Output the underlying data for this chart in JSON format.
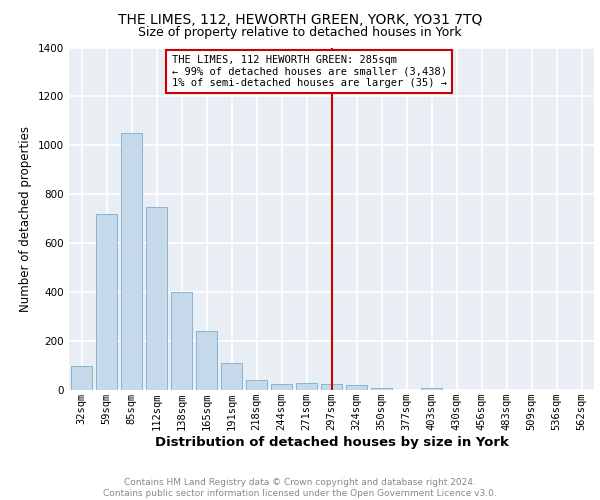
{
  "title": "THE LIMES, 112, HEWORTH GREEN, YORK, YO31 7TQ",
  "subtitle": "Size of property relative to detached houses in York",
  "xlabel": "Distribution of detached houses by size in York",
  "ylabel": "Number of detached properties",
  "categories": [
    "32sqm",
    "59sqm",
    "85sqm",
    "112sqm",
    "138sqm",
    "165sqm",
    "191sqm",
    "218sqm",
    "244sqm",
    "271sqm",
    "297sqm",
    "324sqm",
    "350sqm",
    "377sqm",
    "403sqm",
    "430sqm",
    "456sqm",
    "483sqm",
    "509sqm",
    "536sqm",
    "562sqm"
  ],
  "values": [
    100,
    720,
    1050,
    750,
    400,
    240,
    110,
    40,
    25,
    30,
    25,
    20,
    10,
    0,
    10,
    0,
    0,
    0,
    0,
    0,
    0
  ],
  "bar_color": "#c5d9ea",
  "bar_edge_color": "#7baec8",
  "vline_color": "#cc0000",
  "annotation_line1": "THE LIMES, 112 HEWORTH GREEN: 285sqm",
  "annotation_line2": "← 99% of detached houses are smaller (3,438)",
  "annotation_line3": "1% of semi-detached houses are larger (35) →",
  "annotation_box_edge_color": "#cc0000",
  "annotation_box_facecolor": "white",
  "ylim": [
    0,
    1400
  ],
  "yticks": [
    0,
    200,
    400,
    600,
    800,
    1000,
    1200,
    1400
  ],
  "background_color": "#e8eef4",
  "grid_color": "white",
  "footer_text": "Contains HM Land Registry data © Crown copyright and database right 2024.\nContains public sector information licensed under the Open Government Licence v3.0.",
  "title_fontsize": 10,
  "subtitle_fontsize": 9,
  "xlabel_fontsize": 9.5,
  "ylabel_fontsize": 8.5,
  "tick_fontsize": 7.5,
  "footer_fontsize": 6.5,
  "annotation_fontsize": 7.5
}
